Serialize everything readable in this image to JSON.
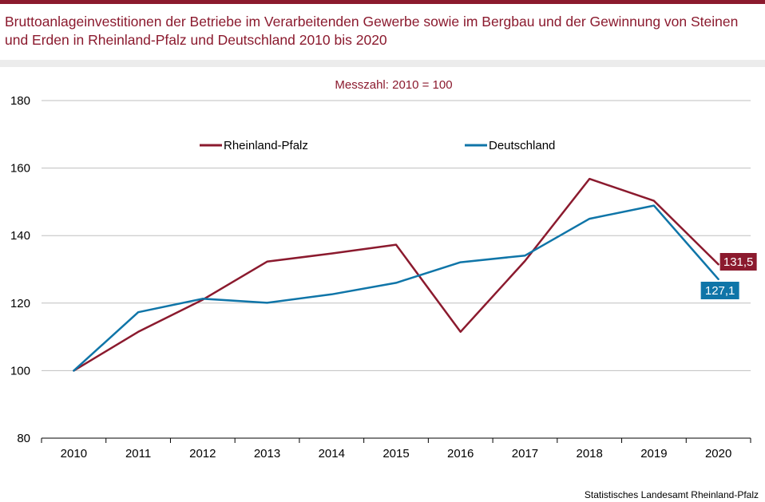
{
  "header": {
    "title": "Bruttoanlageinvestitionen der Betriebe im Verarbeitenden Gewerbe sowie im Bergbau und der Gewinnung von Steinen und Erden in Rheinland-Pfalz und Deutschland 2010 bis 2020"
  },
  "footer": {
    "source": "Statistisches Landesamt  Rheinland-Pfalz"
  },
  "colors": {
    "brand": "#8b1a2e",
    "rlp": "#8b1a2e",
    "de": "#0f75a8",
    "grid": "#bfbfbf"
  },
  "chart_data": {
    "type": "line",
    "subtitle": "Messzahl:  2010 = 100",
    "categories": [
      "2010",
      "2011",
      "2012",
      "2013",
      "2014",
      "2015",
      "2016",
      "2017",
      "2018",
      "2019",
      "2020"
    ],
    "ylim": [
      80,
      180
    ],
    "yticks": [
      80,
      100,
      120,
      140,
      160,
      180
    ],
    "grid": true,
    "legend_position": "top",
    "series": [
      {
        "name": "Rheinland-Pfalz",
        "color": "#8b1a2e",
        "values": [
          100,
          111.5,
          121,
          132.3,
          134.7,
          137.3,
          111.5,
          132.5,
          156.8,
          150.3,
          131.5
        ],
        "end_label": "131,5"
      },
      {
        "name": "Deutschland",
        "color": "#0f75a8",
        "values": [
          100,
          117.3,
          121.3,
          120.1,
          122.6,
          126.0,
          132.1,
          134.1,
          145.0,
          148.9,
          127.1
        ],
        "end_label": "127,1"
      }
    ]
  }
}
